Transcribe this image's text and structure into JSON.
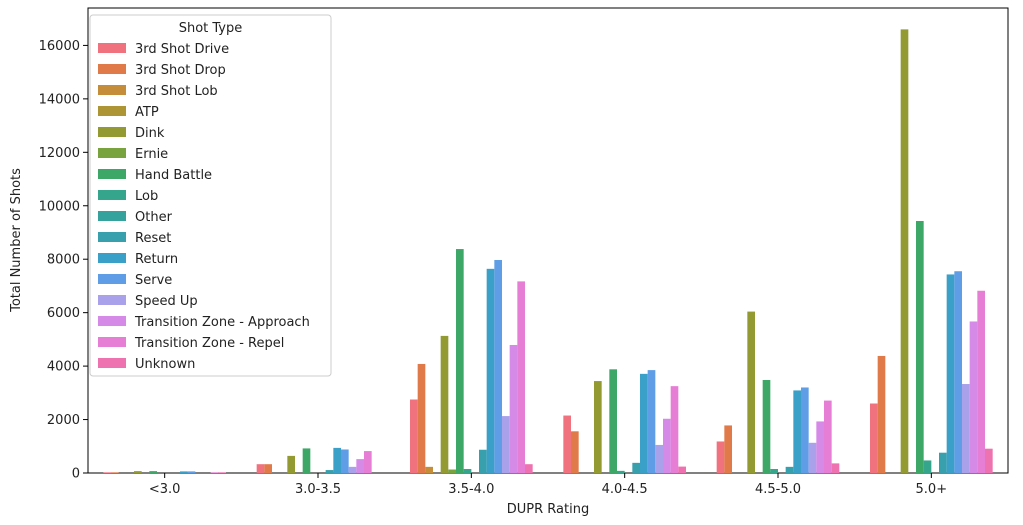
{
  "chart_data": {
    "type": "bar",
    "title": "",
    "xlabel": "DUPR Rating",
    "ylabel": "Total Number of Shots",
    "ylim": [
      0,
      17400
    ],
    "yticks": [
      0,
      2000,
      4000,
      6000,
      8000,
      10000,
      12000,
      14000,
      16000
    ],
    "categories": [
      "<3.0",
      "3.0-3.5",
      "3.5-4.0",
      "4.0-4.5",
      "4.5-5.0",
      "5.0+"
    ],
    "legend": {
      "title": "Shot Type",
      "placement": "top-left"
    },
    "series": [
      {
        "name": "3rd Shot Drive",
        "color": "#f0727f",
        "values": [
          25,
          330,
          2750,
          2150,
          1180,
          2600
        ]
      },
      {
        "name": "3rd Shot Drop",
        "color": "#e17a49",
        "values": [
          25,
          330,
          4080,
          1560,
          1780,
          4380
        ]
      },
      {
        "name": "3rd Shot Lob",
        "color": "#c58c39",
        "values": [
          0,
          0,
          230,
          0,
          0,
          0
        ]
      },
      {
        "name": "ATP",
        "color": "#ad9535",
        "values": [
          0,
          0,
          0,
          0,
          0,
          0
        ]
      },
      {
        "name": "Dink",
        "color": "#939a32",
        "values": [
          70,
          640,
          5130,
          3440,
          6040,
          16600
        ]
      },
      {
        "name": "Ernie",
        "color": "#78a33f",
        "values": [
          0,
          0,
          130,
          0,
          0,
          0
        ]
      },
      {
        "name": "Hand Battle",
        "color": "#3da768",
        "values": [
          70,
          920,
          8380,
          3880,
          3480,
          9430
        ]
      },
      {
        "name": "Lob",
        "color": "#35a58c",
        "values": [
          0,
          0,
          150,
          80,
          150,
          470
        ]
      },
      {
        "name": "Other",
        "color": "#36a29e",
        "values": [
          0,
          0,
          0,
          0,
          0,
          0
        ]
      },
      {
        "name": "Reset",
        "color": "#389fad",
        "values": [
          0,
          110,
          870,
          380,
          230,
          760
        ]
      },
      {
        "name": "Return",
        "color": "#3ba0c8",
        "values": [
          60,
          940,
          7640,
          3710,
          3090,
          7430
        ]
      },
      {
        "name": "Serve",
        "color": "#5f9ee6",
        "values": [
          60,
          880,
          7970,
          3850,
          3200,
          7550
        ]
      },
      {
        "name": "Speed Up",
        "color": "#a9a1ea",
        "values": [
          0,
          230,
          2130,
          1050,
          1130,
          3330
        ]
      },
      {
        "name": "Transition Zone - Approach",
        "color": "#d58ae8",
        "values": [
          0,
          520,
          4790,
          2030,
          1930,
          5670
        ]
      },
      {
        "name": "Transition Zone - Repel",
        "color": "#e77ed6",
        "values": [
          25,
          820,
          7170,
          3250,
          2710,
          6820
        ]
      },
      {
        "name": "Unknown",
        "color": "#ef72b0",
        "values": [
          25,
          0,
          330,
          240,
          360,
          910
        ]
      }
    ]
  }
}
